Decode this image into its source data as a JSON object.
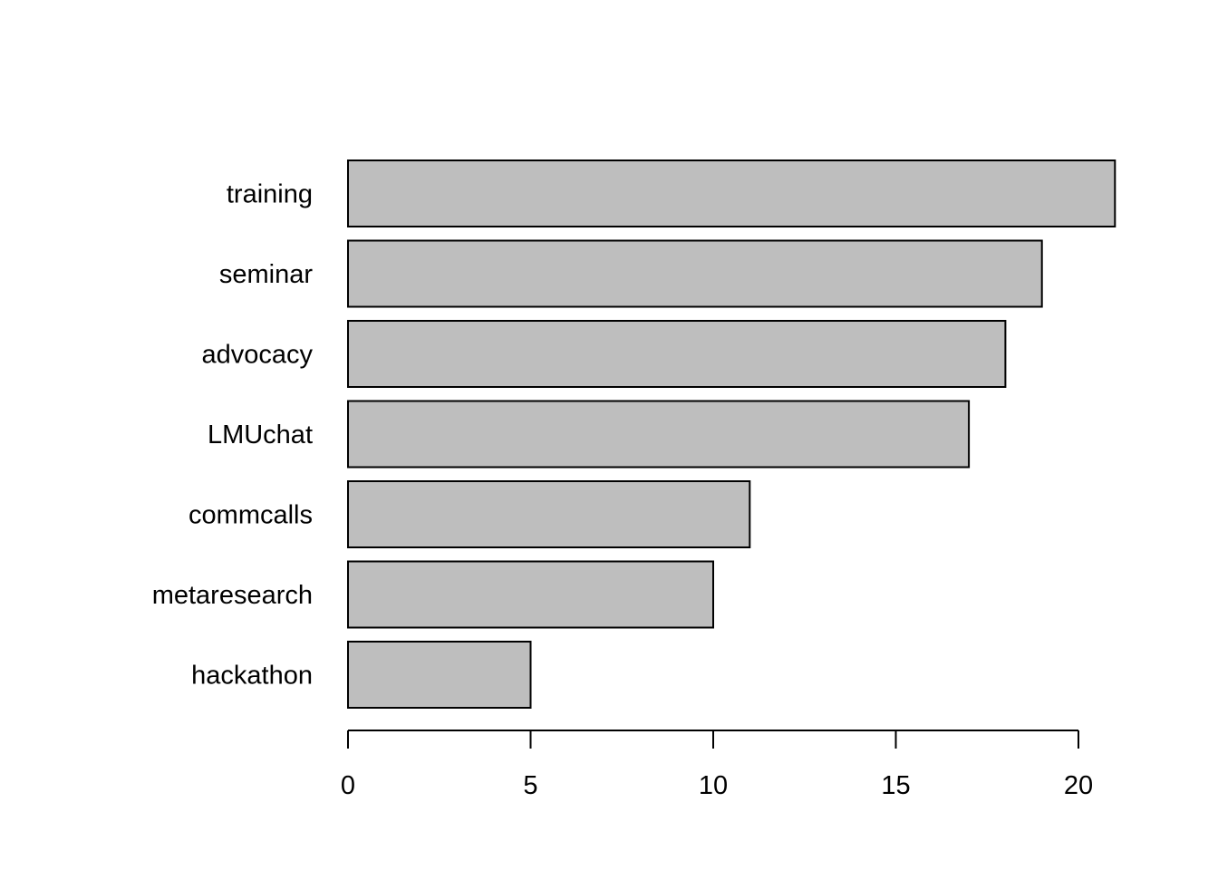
{
  "chart_data": {
    "type": "bar",
    "orientation": "horizontal",
    "categories": [
      "training",
      "seminar",
      "advocacy",
      "LMUchat",
      "commcalls",
      "metaresearch",
      "hackathon"
    ],
    "values": [
      21,
      19,
      18,
      17,
      11,
      10,
      5
    ],
    "title": "",
    "xlabel": "",
    "ylabel": "",
    "xlim": [
      0,
      21
    ],
    "x_ticks": [
      "0",
      "5",
      "10",
      "15",
      "20"
    ],
    "grid": false,
    "legend": "none",
    "colors": {
      "bar_fill": "#bebebe",
      "bar_stroke": "#000000",
      "background": "#ffffff"
    }
  }
}
